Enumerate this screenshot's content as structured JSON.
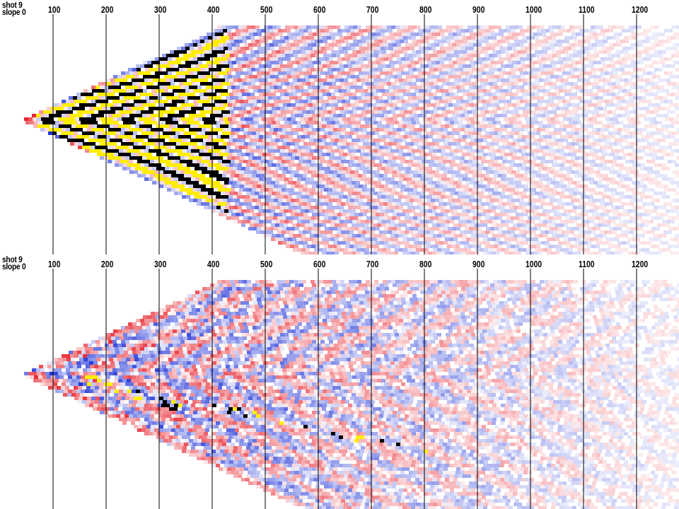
{
  "panels": [
    {
      "id": "top",
      "shot_label": "shot 9",
      "slope_label": "slope 0",
      "ticks": [
        "100",
        "200",
        "300",
        "400",
        "500",
        "600",
        "700",
        "800",
        "900",
        "1000",
        "1100",
        "1200"
      ]
    },
    {
      "id": "bottom",
      "shot_label": "shot 9",
      "slope_label": "slope 0",
      "ticks": [
        "100",
        "200",
        "300",
        "400",
        "500",
        "600",
        "700",
        "800",
        "900",
        "1000",
        "1100",
        "1200"
      ]
    }
  ],
  "colors": {
    "positive": "#e8252f",
    "negative": "#1c2fd6",
    "strong_positive": "#ffee00",
    "strong_negative": "#000000",
    "lines": "#000000"
  }
}
